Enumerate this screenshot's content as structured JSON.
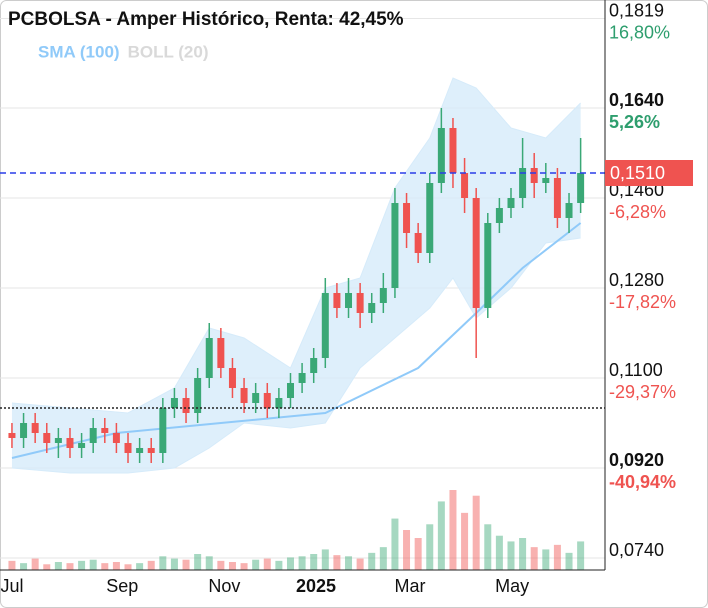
{
  "chart_data": {
    "type": "candlestick",
    "title": "PCBOLSA - Amper Histórico, Renta: 42,45%",
    "x": [
      0,
      1,
      2,
      3,
      4,
      5,
      6,
      7,
      8,
      9,
      10,
      11,
      12,
      13,
      14,
      15,
      16,
      17,
      18,
      19,
      20,
      21,
      22,
      23,
      24,
      25,
      26,
      27,
      28,
      29,
      30,
      31,
      32,
      33,
      34,
      35,
      36,
      37,
      38,
      39,
      40,
      41,
      42,
      43,
      44,
      45,
      46,
      47,
      48,
      49
    ],
    "open": [
      0.099,
      0.098,
      0.101,
      0.099,
      0.097,
      0.098,
      0.096,
      0.097,
      0.1,
      0.099,
      0.097,
      0.095,
      0.096,
      0.095,
      0.104,
      0.106,
      0.103,
      0.11,
      0.118,
      0.112,
      0.108,
      0.105,
      0.107,
      0.104,
      0.106,
      0.109,
      0.111,
      0.114,
      0.127,
      0.124,
      0.127,
      0.123,
      0.125,
      0.128,
      0.145,
      0.139,
      0.135,
      0.149,
      0.16,
      0.151,
      0.146,
      0.124,
      0.141,
      0.144,
      0.146,
      0.152,
      0.149,
      0.15,
      0.142,
      0.145
    ],
    "high": [
      0.101,
      0.103,
      0.103,
      0.101,
      0.1,
      0.1,
      0.099,
      0.102,
      0.102,
      0.101,
      0.099,
      0.098,
      0.098,
      0.106,
      0.108,
      0.108,
      0.112,
      0.121,
      0.12,
      0.114,
      0.11,
      0.109,
      0.109,
      0.108,
      0.111,
      0.113,
      0.116,
      0.13,
      0.129,
      0.13,
      0.129,
      0.127,
      0.131,
      0.148,
      0.147,
      0.141,
      0.151,
      0.164,
      0.162,
      0.154,
      0.148,
      0.143,
      0.146,
      0.148,
      0.158,
      0.155,
      0.153,
      0.152,
      0.147,
      0.158
    ],
    "low": [
      0.096,
      0.096,
      0.097,
      0.095,
      0.094,
      0.094,
      0.094,
      0.095,
      0.097,
      0.095,
      0.093,
      0.093,
      0.093,
      0.093,
      0.102,
      0.101,
      0.101,
      0.108,
      0.11,
      0.106,
      0.103,
      0.103,
      0.102,
      0.102,
      0.104,
      0.107,
      0.109,
      0.112,
      0.122,
      0.122,
      0.12,
      0.121,
      0.123,
      0.126,
      0.136,
      0.133,
      0.133,
      0.147,
      0.148,
      0.143,
      0.114,
      0.122,
      0.139,
      0.142,
      0.144,
      0.146,
      0.147,
      0.14,
      0.139,
      0.143
    ],
    "close": [
      0.098,
      0.101,
      0.099,
      0.097,
      0.098,
      0.096,
      0.097,
      0.1,
      0.099,
      0.097,
      0.095,
      0.096,
      0.095,
      0.104,
      0.106,
      0.103,
      0.11,
      0.118,
      0.112,
      0.108,
      0.105,
      0.107,
      0.104,
      0.106,
      0.109,
      0.111,
      0.114,
      0.127,
      0.124,
      0.127,
      0.123,
      0.125,
      0.128,
      0.145,
      0.139,
      0.135,
      0.149,
      0.16,
      0.151,
      0.146,
      0.124,
      0.141,
      0.144,
      0.146,
      0.152,
      0.149,
      0.15,
      0.142,
      0.145,
      0.151
    ],
    "volume": [
      8,
      6,
      10,
      5,
      7,
      6,
      8,
      9,
      6,
      7,
      5,
      6,
      8,
      12,
      10,
      9,
      14,
      12,
      8,
      7,
      6,
      9,
      10,
      8,
      11,
      12,
      14,
      18,
      13,
      12,
      10,
      15,
      20,
      45,
      35,
      28,
      40,
      60,
      70,
      50,
      65,
      40,
      30,
      25,
      28,
      20,
      18,
      22,
      15,
      25
    ],
    "up_color": "#3aa876",
    "down_color": "#ef5350",
    "xlim": [
      -1.03,
      51.1
    ],
    "xticks": [
      {
        "value": 0,
        "label": "Jul"
      },
      {
        "value": 9.5,
        "label": "Sep"
      },
      {
        "value": 18.3,
        "label": "Nov"
      },
      {
        "value": 26.2,
        "label": "2025",
        "bold": true
      },
      {
        "value": 34.3,
        "label": "Mar"
      },
      {
        "value": 43.1,
        "label": "May"
      }
    ],
    "ylim": [
      0.0716,
      0.1856
    ],
    "yticks": [
      {
        "value": 0.074,
        "label": "0,0740"
      },
      {
        "value": 0.092,
        "label": "0,0920",
        "change_label": "-40,94%",
        "bold": true
      },
      {
        "value": 0.11,
        "label": "0,1100",
        "change_label": "-29,37%"
      },
      {
        "value": 0.128,
        "label": "0,1280",
        "change_label": "-17,82%"
      },
      {
        "value": 0.146,
        "label": "0,1460",
        "change_label": "-6,28%"
      },
      {
        "value": 0.164,
        "label": "0,1640",
        "change_label": "5,26%",
        "bold": true
      },
      {
        "value": 0.1819,
        "label": "0,1819",
        "change_label": "16,80%"
      }
    ],
    "grid": true,
    "indicators": [
      {
        "name": "SMA (100)",
        "color": "#90caf9",
        "x": [
          0,
          9,
          18,
          27,
          35,
          40,
          44,
          49
        ],
        "values": [
          0.094,
          0.099,
          0.101,
          0.103,
          0.112,
          0.123,
          0.132,
          0.141
        ]
      },
      {
        "name": "BOLL (20)",
        "color": "#d9d9d9",
        "fill": "#d6ebfa",
        "x": [
          0,
          5,
          10,
          14,
          17,
          20,
          24,
          27,
          30,
          33,
          36,
          38,
          40,
          43,
          46,
          49
        ],
        "upper": [
          0.105,
          0.104,
          0.103,
          0.108,
          0.12,
          0.118,
          0.112,
          0.128,
          0.13,
          0.148,
          0.158,
          0.17,
          0.168,
          0.16,
          0.158,
          0.165
        ],
        "lower": [
          0.092,
          0.091,
          0.091,
          0.092,
          0.096,
          0.101,
          0.1,
          0.101,
          0.112,
          0.118,
          0.124,
          0.13,
          0.122,
          0.128,
          0.137,
          0.138
        ]
      }
    ],
    "last_price": {
      "value": 0.151,
      "label": "0,1510",
      "color": "#ef5350"
    },
    "reference_line": 0.104
  }
}
